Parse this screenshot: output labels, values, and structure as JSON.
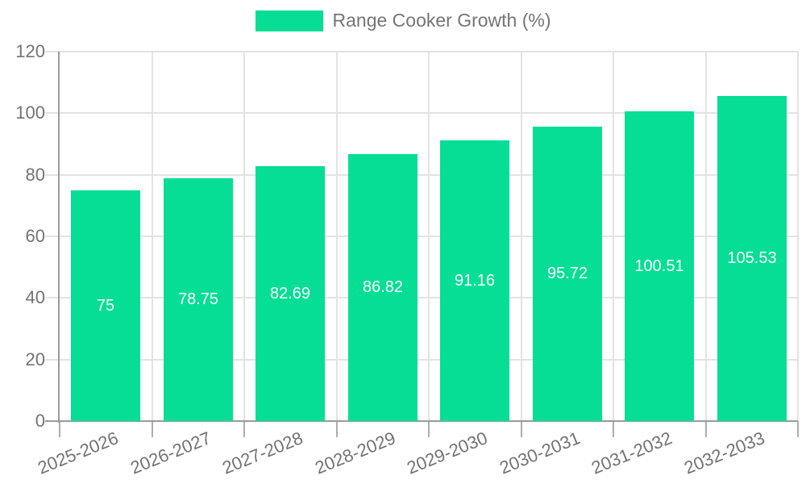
{
  "legend": {
    "label": "Range Cooker Growth (%)"
  },
  "chart_data": {
    "type": "bar",
    "title": "",
    "xlabel": "",
    "ylabel": "",
    "categories": [
      "2025-2026",
      "2026-2027",
      "2027-2028",
      "2028-2029",
      "2029-2030",
      "2030-2031",
      "2031-2032",
      "2032-2033"
    ],
    "series": [
      {
        "name": "Range Cooker Growth (%)",
        "values": [
          75,
          78.75,
          82.69,
          86.82,
          91.16,
          95.72,
          100.51,
          105.53
        ]
      }
    ],
    "ylim": [
      0,
      120
    ],
    "yticks": [
      0,
      20,
      40,
      60,
      80,
      100,
      120
    ],
    "grid": true,
    "legend_position": "top",
    "colors": {
      "bar": "#05de94",
      "value_label": "#ffffff",
      "grid": "#e3e3e3",
      "axis": "#9b9b9b",
      "tick": "#adadad",
      "tick_label": "#737373",
      "legend_label": "#757575"
    }
  }
}
